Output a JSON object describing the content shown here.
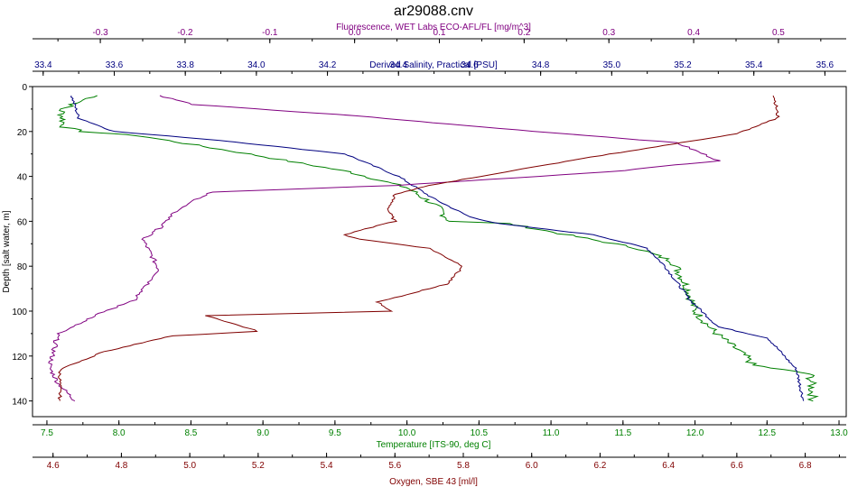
{
  "chart_data": {
    "type": "line",
    "title": "ar29088.cnv",
    "y_axis": {
      "label": "Depth [salt water, m]",
      "range": [
        0,
        147
      ],
      "ticks": [
        0,
        20,
        40,
        60,
        80,
        100,
        120,
        140
      ],
      "inverted": true,
      "color": "#000000"
    },
    "x_axes": [
      {
        "id": "fluorescence",
        "label": "Fluorescence, WET Labs ECO-AFL/FL [mg/m^3]",
        "position": "top-outer",
        "range": [
          -0.38,
          0.58
        ],
        "ticks": [
          -0.3,
          -0.2,
          -0.1,
          0.0,
          0.1,
          0.2,
          0.3,
          0.4,
          0.5
        ],
        "tick_labels": [
          "-0.3",
          "-0.2",
          "-0.1",
          "0.0",
          "0.1",
          "0.2",
          "0.3",
          "0.4",
          "0.5"
        ],
        "color": "#800080"
      },
      {
        "id": "salinity",
        "label": "Derived Salinity, Practical [PSU]",
        "position": "top-inner",
        "range": [
          33.37,
          35.66
        ],
        "ticks": [
          33.4,
          33.6,
          33.8,
          34.0,
          34.2,
          34.4,
          34.6,
          34.8,
          35.0,
          35.2,
          35.4,
          35.6
        ],
        "tick_labels": [
          "33.4",
          "33.6",
          "33.8",
          "34.0",
          "34.2",
          "34.4",
          "34.6",
          "34.8",
          "35.0",
          "35.2",
          "35.4",
          "35.6"
        ],
        "color": "#000080"
      },
      {
        "id": "temperature",
        "label": "Temperature [ITS-90, deg C]",
        "position": "bottom-inner",
        "range": [
          7.4,
          13.05
        ],
        "ticks": [
          7.5,
          8.0,
          8.5,
          9.0,
          9.5,
          10.0,
          10.5,
          11.0,
          11.5,
          12.0,
          12.5,
          13.0
        ],
        "tick_labels": [
          "7.5",
          "8.0",
          "8.5",
          "9.0",
          "9.5",
          "10.0",
          "10.5",
          "11.0",
          "11.5",
          "12.0",
          "12.5",
          "13.0"
        ],
        "color": "#008000"
      },
      {
        "id": "oxygen",
        "label": "Oxygen, SBE 43 [ml/l]",
        "position": "bottom-outer",
        "range": [
          4.54,
          6.92
        ],
        "ticks": [
          4.6,
          4.8,
          5.0,
          5.2,
          5.4,
          5.6,
          5.8,
          6.0,
          6.2,
          6.4,
          6.6,
          6.8
        ],
        "tick_labels": [
          "4.6",
          "4.8",
          "5.0",
          "5.2",
          "5.4",
          "5.6",
          "5.8",
          "6.0",
          "6.2",
          "6.4",
          "6.6",
          "6.8"
        ],
        "color": "#800000"
      }
    ],
    "series": [
      {
        "axis": "temperature",
        "color": "#008000",
        "jitter": 0.012,
        "x": [
          7.85,
          7.6,
          7.62,
          7.75,
          8.15,
          8.9,
          9.6,
          10.0,
          10.2,
          10.3,
          10.7,
          11.6,
          11.85,
          11.95,
          12.0,
          12.1,
          12.15,
          12.35,
          12.4,
          12.8,
          12.82
        ],
        "y": [
          4,
          10,
          18,
          20,
          22,
          30,
          38,
          45,
          53,
          60,
          61,
          72,
          78,
          90,
          100,
          107,
          110,
          120,
          124,
          128,
          140
        ]
      },
      {
        "axis": "salinity",
        "color": "#000080",
        "jitter": 0.004,
        "x": [
          33.48,
          33.5,
          33.6,
          33.9,
          34.25,
          34.4,
          34.5,
          34.6,
          34.68,
          34.95,
          35.1,
          35.15,
          35.22,
          35.3,
          35.44,
          35.52,
          35.54
        ],
        "y": [
          4,
          14,
          20,
          24,
          30,
          40,
          50,
          58,
          61,
          66,
          72,
          80,
          95,
          107,
          112,
          126,
          140
        ]
      },
      {
        "axis": "fluorescence",
        "color": "#800080",
        "jitter": 0.006,
        "x": [
          -0.23,
          -0.19,
          0.0,
          0.15,
          0.38,
          0.43,
          0.3,
          0.05,
          -0.17,
          -0.21,
          -0.23,
          -0.25,
          -0.23,
          -0.26,
          -0.3,
          -0.35,
          -0.36,
          -0.35,
          -0.33
        ],
        "y": [
          4,
          8,
          13,
          18,
          25,
          33,
          38,
          44,
          47,
          55,
          63,
          68,
          82,
          95,
          101,
          110,
          125,
          132,
          140
        ]
      },
      {
        "axis": "oxygen",
        "color": "#800000",
        "jitter": 0.004,
        "x": [
          6.71,
          6.72,
          6.6,
          6.15,
          5.7,
          5.6,
          5.58,
          5.6,
          5.45,
          5.5,
          5.7,
          5.8,
          5.75,
          5.55,
          5.59,
          5.05,
          5.2,
          4.95,
          4.75,
          4.62,
          4.62
        ],
        "y": [
          4,
          14,
          21,
          32,
          44,
          48,
          55,
          60,
          66,
          68,
          72,
          80,
          88,
          96,
          100,
          102,
          109,
          111,
          118,
          126,
          140
        ]
      }
    ]
  }
}
